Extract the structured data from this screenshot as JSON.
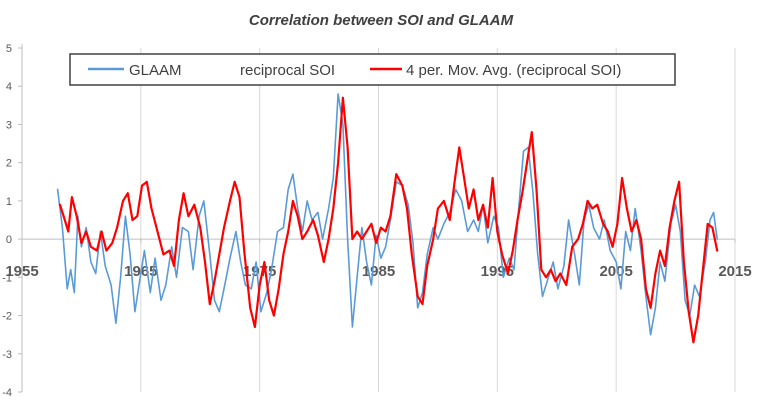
{
  "chart_data": {
    "type": "line",
    "title": "Correlation between SOI and GLAAM",
    "xlabel": "",
    "ylabel": "",
    "xlim": [
      1955,
      2015
    ],
    "ylim": [
      -4,
      5
    ],
    "x_ticks": [
      1955,
      1965,
      1975,
      1985,
      1995,
      2005,
      2015
    ],
    "x_tick_labels": [
      "1955",
      "1965",
      "1975",
      "1985",
      "1995",
      "2005",
      "2015"
    ],
    "y_ticks": [
      -4,
      -3,
      -2,
      -1,
      0,
      1,
      2,
      3,
      4,
      5
    ],
    "y_tick_labels": [
      "-4",
      "-3",
      "-2",
      "-1",
      "0",
      "1",
      "2",
      "3",
      "4",
      "5"
    ],
    "grid": "vertical",
    "legend_position": "top-center",
    "legend": [
      "GLAAM",
      "reciprocal SOI",
      "4 per. Mov. Avg. (reciprocal SOI)"
    ],
    "series": [
      {
        "name": "GLAAM",
        "color": "#5b9bd5",
        "points": [
          [
            1958.0,
            1.3
          ],
          [
            1958.4,
            0.3
          ],
          [
            1958.8,
            -1.3
          ],
          [
            1959.1,
            -0.8
          ],
          [
            1959.4,
            -1.4
          ],
          [
            1959.7,
            0.6
          ],
          [
            1960.0,
            -0.2
          ],
          [
            1960.4,
            0.3
          ],
          [
            1960.8,
            -0.6
          ],
          [
            1961.2,
            -0.9
          ],
          [
            1961.6,
            0.2
          ],
          [
            1962.0,
            -0.7
          ],
          [
            1962.5,
            -1.2
          ],
          [
            1962.9,
            -2.2
          ],
          [
            1963.3,
            -1.0
          ],
          [
            1963.7,
            0.6
          ],
          [
            1964.1,
            -0.4
          ],
          [
            1964.5,
            -1.9
          ],
          [
            1964.9,
            -1.1
          ],
          [
            1965.3,
            -0.3
          ],
          [
            1965.8,
            -1.4
          ],
          [
            1966.2,
            -0.5
          ],
          [
            1966.7,
            -1.6
          ],
          [
            1967.1,
            -1.2
          ],
          [
            1967.6,
            -0.2
          ],
          [
            1968.0,
            -1.0
          ],
          [
            1968.5,
            0.3
          ],
          [
            1969.0,
            0.2
          ],
          [
            1969.4,
            -0.8
          ],
          [
            1969.9,
            0.6
          ],
          [
            1970.3,
            1.0
          ],
          [
            1970.8,
            -0.4
          ],
          [
            1971.2,
            -1.6
          ],
          [
            1971.6,
            -1.9
          ],
          [
            1972.0,
            -1.3
          ],
          [
            1972.5,
            -0.5
          ],
          [
            1973.0,
            0.2
          ],
          [
            1973.4,
            -0.6
          ],
          [
            1973.8,
            -1.2
          ],
          [
            1974.3,
            -1.3
          ],
          [
            1974.7,
            -0.6
          ],
          [
            1975.1,
            -1.9
          ],
          [
            1975.6,
            -1.4
          ],
          [
            1976.0,
            -0.8
          ],
          [
            1976.5,
            0.2
          ],
          [
            1977.0,
            0.3
          ],
          [
            1977.4,
            1.3
          ],
          [
            1977.8,
            1.7
          ],
          [
            1978.2,
            0.8
          ],
          [
            1978.6,
            0.2
          ],
          [
            1979.0,
            1.0
          ],
          [
            1979.4,
            0.5
          ],
          [
            1979.9,
            0.7
          ],
          [
            1980.3,
            0.0
          ],
          [
            1980.8,
            0.8
          ],
          [
            1981.2,
            1.6
          ],
          [
            1981.6,
            3.8
          ],
          [
            1982.0,
            3.0
          ],
          [
            1982.4,
            0.0
          ],
          [
            1982.8,
            -2.3
          ],
          [
            1983.2,
            -1.0
          ],
          [
            1983.6,
            0.3
          ],
          [
            1984.0,
            -0.6
          ],
          [
            1984.4,
            -1.2
          ],
          [
            1984.8,
            0.1
          ],
          [
            1985.2,
            -0.5
          ],
          [
            1985.6,
            -0.2
          ],
          [
            1986.0,
            0.5
          ],
          [
            1986.5,
            1.5
          ],
          [
            1987.0,
            1.4
          ],
          [
            1987.5,
            0.9
          ],
          [
            1987.9,
            -0.1
          ],
          [
            1988.3,
            -1.8
          ],
          [
            1988.7,
            -1.4
          ],
          [
            1989.1,
            -0.4
          ],
          [
            1989.6,
            0.3
          ],
          [
            1990.0,
            0.0
          ],
          [
            1990.5,
            0.4
          ],
          [
            1991.0,
            0.7
          ],
          [
            1991.5,
            1.3
          ],
          [
            1992.0,
            1.0
          ],
          [
            1992.5,
            0.2
          ],
          [
            1993.0,
            0.5
          ],
          [
            1993.4,
            0.2
          ],
          [
            1993.8,
            0.9
          ],
          [
            1994.2,
            -0.1
          ],
          [
            1994.7,
            0.6
          ],
          [
            1995.1,
            0.3
          ],
          [
            1995.5,
            -1.0
          ],
          [
            1996.0,
            -0.5
          ],
          [
            1996.4,
            -0.8
          ],
          [
            1996.8,
            0.8
          ],
          [
            1997.2,
            2.3
          ],
          [
            1997.6,
            2.4
          ],
          [
            1998.0,
            1.2
          ],
          [
            1998.4,
            -0.4
          ],
          [
            1998.8,
            -1.5
          ],
          [
            1999.2,
            -1.1
          ],
          [
            1999.7,
            -0.6
          ],
          [
            2000.1,
            -1.3
          ],
          [
            2000.6,
            -0.7
          ],
          [
            2001.0,
            0.5
          ],
          [
            2001.5,
            -0.4
          ],
          [
            2001.9,
            -1.2
          ],
          [
            2002.3,
            0.5
          ],
          [
            2002.7,
            0.9
          ],
          [
            2003.1,
            0.3
          ],
          [
            2003.6,
            0.0
          ],
          [
            2004.0,
            0.5
          ],
          [
            2004.5,
            -0.3
          ],
          [
            2005.0,
            -0.6
          ],
          [
            2005.4,
            -1.3
          ],
          [
            2005.8,
            0.2
          ],
          [
            2006.2,
            -0.3
          ],
          [
            2006.6,
            0.8
          ],
          [
            2007.1,
            -0.3
          ],
          [
            2007.5,
            -1.5
          ],
          [
            2007.9,
            -2.5
          ],
          [
            2008.3,
            -1.8
          ],
          [
            2008.7,
            -0.6
          ],
          [
            2009.1,
            -1.1
          ],
          [
            2009.6,
            0.4
          ],
          [
            2010.0,
            0.9
          ],
          [
            2010.4,
            0.2
          ],
          [
            2010.8,
            -1.6
          ],
          [
            2011.2,
            -2.0
          ],
          [
            2011.6,
            -1.2
          ],
          [
            2012.0,
            -1.5
          ],
          [
            2012.5,
            -0.6
          ],
          [
            2012.9,
            0.5
          ],
          [
            2013.2,
            0.7
          ],
          [
            2013.5,
            0.0
          ]
        ]
      },
      {
        "name": "4 per. Mov. Avg. (reciprocal SOI)",
        "color": "#ff0000",
        "points": [
          [
            1958.2,
            0.9
          ],
          [
            1958.6,
            0.5
          ],
          [
            1958.9,
            0.2
          ],
          [
            1959.2,
            1.1
          ],
          [
            1959.6,
            0.6
          ],
          [
            1960.0,
            -0.1
          ],
          [
            1960.4,
            0.2
          ],
          [
            1960.8,
            -0.2
          ],
          [
            1961.3,
            -0.3
          ],
          [
            1961.7,
            0.2
          ],
          [
            1962.1,
            -0.3
          ],
          [
            1962.6,
            -0.1
          ],
          [
            1963.0,
            0.3
          ],
          [
            1963.5,
            1.0
          ],
          [
            1963.9,
            1.2
          ],
          [
            1964.3,
            0.5
          ],
          [
            1964.7,
            0.6
          ],
          [
            1965.1,
            1.4
          ],
          [
            1965.5,
            1.5
          ],
          [
            1965.9,
            0.8
          ],
          [
            1966.4,
            0.2
          ],
          [
            1966.9,
            -0.4
          ],
          [
            1967.4,
            -0.3
          ],
          [
            1967.8,
            -0.7
          ],
          [
            1968.2,
            0.5
          ],
          [
            1968.6,
            1.2
          ],
          [
            1969.0,
            0.6
          ],
          [
            1969.5,
            0.9
          ],
          [
            1970.0,
            0.3
          ],
          [
            1970.4,
            -0.6
          ],
          [
            1970.8,
            -1.7
          ],
          [
            1971.2,
            -1.1
          ],
          [
            1971.6,
            -0.4
          ],
          [
            1972.0,
            0.3
          ],
          [
            1972.5,
            1.0
          ],
          [
            1972.9,
            1.5
          ],
          [
            1973.3,
            1.1
          ],
          [
            1973.7,
            -0.3
          ],
          [
            1974.2,
            -1.8
          ],
          [
            1974.6,
            -2.3
          ],
          [
            1975.0,
            -1.2
          ],
          [
            1975.4,
            -0.6
          ],
          [
            1975.8,
            -1.6
          ],
          [
            1976.2,
            -2.0
          ],
          [
            1976.6,
            -1.3
          ],
          [
            1977.0,
            -0.4
          ],
          [
            1977.4,
            0.2
          ],
          [
            1977.8,
            1.0
          ],
          [
            1978.2,
            0.6
          ],
          [
            1978.6,
            0.0
          ],
          [
            1979.0,
            0.2
          ],
          [
            1979.5,
            0.5
          ],
          [
            1979.9,
            0.1
          ],
          [
            1980.4,
            -0.6
          ],
          [
            1980.8,
            0.0
          ],
          [
            1981.2,
            0.8
          ],
          [
            1981.6,
            2.0
          ],
          [
            1982.0,
            3.7
          ],
          [
            1982.4,
            2.4
          ],
          [
            1982.8,
            0.0
          ],
          [
            1983.2,
            0.2
          ],
          [
            1983.6,
            0.0
          ],
          [
            1984.0,
            0.2
          ],
          [
            1984.4,
            0.4
          ],
          [
            1984.8,
            -0.1
          ],
          [
            1985.2,
            0.3
          ],
          [
            1985.6,
            0.2
          ],
          [
            1986.0,
            0.6
          ],
          [
            1986.5,
            1.7
          ],
          [
            1987.0,
            1.4
          ],
          [
            1987.4,
            0.8
          ],
          [
            1987.8,
            -0.4
          ],
          [
            1988.3,
            -1.5
          ],
          [
            1988.7,
            -1.7
          ],
          [
            1989.1,
            -0.7
          ],
          [
            1989.6,
            0.0
          ],
          [
            1990.0,
            0.8
          ],
          [
            1990.5,
            1.0
          ],
          [
            1991.0,
            0.5
          ],
          [
            1991.4,
            1.5
          ],
          [
            1991.8,
            2.4
          ],
          [
            1992.2,
            1.6
          ],
          [
            1992.6,
            0.8
          ],
          [
            1993.0,
            1.3
          ],
          [
            1993.4,
            0.5
          ],
          [
            1993.8,
            0.9
          ],
          [
            1994.2,
            0.3
          ],
          [
            1994.6,
            1.6
          ],
          [
            1995.0,
            0.2
          ],
          [
            1995.4,
            -0.4
          ],
          [
            1995.9,
            -0.9
          ],
          [
            1996.3,
            -0.3
          ],
          [
            1996.7,
            0.5
          ],
          [
            1997.1,
            1.2
          ],
          [
            1997.5,
            2.0
          ],
          [
            1997.9,
            2.8
          ],
          [
            1998.3,
            1.3
          ],
          [
            1998.7,
            -0.8
          ],
          [
            1999.1,
            -1.0
          ],
          [
            1999.5,
            -0.8
          ],
          [
            1999.9,
            -1.1
          ],
          [
            2000.3,
            -0.9
          ],
          [
            2000.8,
            -1.2
          ],
          [
            2001.3,
            -0.2
          ],
          [
            2001.8,
            0.0
          ],
          [
            2002.2,
            0.4
          ],
          [
            2002.6,
            1.0
          ],
          [
            2003.0,
            0.8
          ],
          [
            2003.4,
            0.9
          ],
          [
            2003.9,
            0.4
          ],
          [
            2004.3,
            0.2
          ],
          [
            2004.7,
            -0.2
          ],
          [
            2005.1,
            0.4
          ],
          [
            2005.5,
            1.6
          ],
          [
            2005.9,
            0.8
          ],
          [
            2006.3,
            0.2
          ],
          [
            2006.7,
            0.5
          ],
          [
            2007.1,
            0.0
          ],
          [
            2007.5,
            -1.3
          ],
          [
            2007.9,
            -1.8
          ],
          [
            2008.3,
            -0.9
          ],
          [
            2008.7,
            -0.3
          ],
          [
            2009.1,
            -0.7
          ],
          [
            2009.5,
            0.3
          ],
          [
            2009.9,
            1.0
          ],
          [
            2010.3,
            1.5
          ],
          [
            2010.7,
            -0.6
          ],
          [
            2011.1,
            -1.9
          ],
          [
            2011.5,
            -2.7
          ],
          [
            2011.9,
            -2.0
          ],
          [
            2012.3,
            -0.8
          ],
          [
            2012.7,
            0.4
          ],
          [
            2013.1,
            0.3
          ],
          [
            2013.5,
            -0.3
          ]
        ]
      }
    ]
  }
}
